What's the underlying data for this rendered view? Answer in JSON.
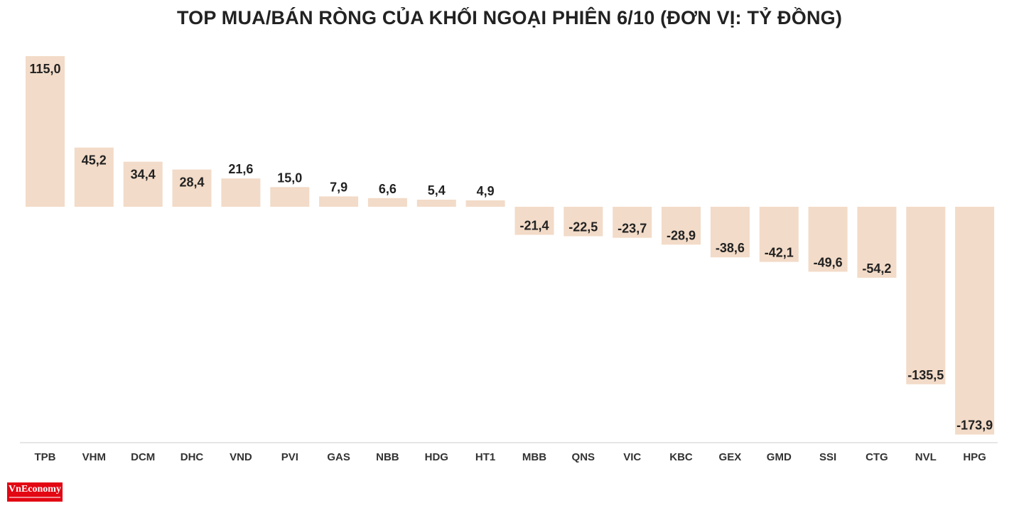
{
  "chart_data": {
    "type": "bar",
    "title": "TOP MUA/BÁN RÒNG CỦA KHỐI NGOẠI PHIÊN 6/10 (ĐƠN VỊ: TỶ ĐỒNG)",
    "categories": [
      "TPB",
      "VHM",
      "DCM",
      "DHC",
      "VND",
      "PVI",
      "GAS",
      "NBB",
      "HDG",
      "HT1",
      "MBB",
      "QNS",
      "VIC",
      "KBC",
      "GEX",
      "GMD",
      "SSI",
      "CTG",
      "NVL",
      "HPG"
    ],
    "values": [
      115.0,
      45.2,
      34.4,
      28.4,
      21.6,
      15.0,
      7.9,
      6.6,
      5.4,
      4.9,
      -21.4,
      -22.5,
      -23.7,
      -28.9,
      -38.6,
      -42.1,
      -49.6,
      -54.2,
      -135.5,
      -173.9
    ],
    "value_labels": [
      "115,0",
      "45,2",
      "34,4",
      "28,4",
      "21,6",
      "15,0",
      "7,9",
      "6,6",
      "5,4",
      "4,9",
      "-21,4",
      "-22,5",
      "-23,7",
      "-28,9",
      "-38,6",
      "-42,1",
      "-49,6",
      "-54,2",
      "-135,5",
      "-173,9"
    ],
    "xlabel": "",
    "ylabel": "",
    "ylim": [
      -173.9,
      115.0
    ],
    "grid": false,
    "legend": "none",
    "bar_color": "#f2dbc8",
    "axis_color": "#cccccc"
  },
  "logo": {
    "text": "VnEconomy",
    "color": "#e30613"
  }
}
